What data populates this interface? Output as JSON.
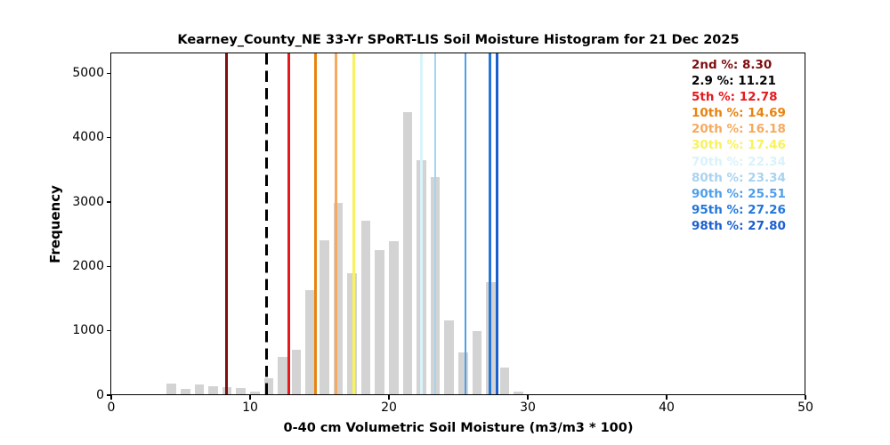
{
  "chart_data": {
    "type": "bar",
    "title": "Kearney_County_NE 33-Yr SPoRT-LIS Soil Moisture Histogram for 21 Dec 2025",
    "xlabel": "0-40 cm Volumetric Soil Moisture (m3/m3 * 100)",
    "ylabel": "Frequency",
    "xlim": [
      0,
      50
    ],
    "ylim": [
      0,
      5310
    ],
    "x_ticks": [
      0,
      10,
      20,
      30,
      40,
      50
    ],
    "y_ticks": [
      0,
      1000,
      2000,
      3000,
      4000,
      5000
    ],
    "grid": false,
    "bar_color": "#d3d3d3",
    "legend_position": "top-right-inside",
    "histogram": {
      "bin_left_edges": [
        4,
        5,
        6,
        7,
        8,
        9,
        10,
        11,
        12,
        13,
        14,
        15,
        16,
        17,
        18,
        19,
        20,
        21,
        22,
        23,
        24,
        25,
        26,
        27,
        28,
        29
      ],
      "bin_width": 1,
      "bar_rel_width": 0.68,
      "frequencies": [
        175,
        95,
        170,
        145,
        130,
        115,
        50,
        260,
        590,
        700,
        1630,
        2400,
        2990,
        1890,
        2710,
        2260,
        2390,
        4400,
        3655,
        3390,
        1160,
        670,
        1000,
        1760,
        430,
        60
      ]
    },
    "percentile_lines": [
      {
        "label": "2nd %",
        "value": 8.3,
        "value_display": "8.30",
        "color": "#7e0e10",
        "line_style": "solid"
      },
      {
        "label": "2.9 %",
        "value": 11.21,
        "value_display": "11.21",
        "color": "#000000",
        "line_style": "dashed"
      },
      {
        "label": "5th %",
        "value": 12.78,
        "value_display": "12.78",
        "color": "#e51a1c",
        "line_style": "solid"
      },
      {
        "label": "10th %",
        "value": 14.69,
        "value_display": "14.69",
        "color": "#e8830f",
        "line_style": "solid"
      },
      {
        "label": "20th %",
        "value": 16.18,
        "value_display": "16.18",
        "color": "#f6aa5f",
        "line_style": "solid"
      },
      {
        "label": "30th %",
        "value": 17.46,
        "value_display": "17.46",
        "color": "#f8f25c",
        "line_style": "solid"
      },
      {
        "label": "70th %",
        "value": 22.34,
        "value_display": "22.34",
        "color": "#d9f3fa",
        "line_style": "solid"
      },
      {
        "label": "80th %",
        "value": 23.34,
        "value_display": "23.34",
        "color": "#a8d3f0",
        "line_style": "solid"
      },
      {
        "label": "90th %",
        "value": 25.51,
        "value_display": "25.51",
        "color": "#4f9fe8",
        "line_style": "solid"
      },
      {
        "label": "95th %",
        "value": 27.26,
        "value_display": "27.26",
        "color": "#2376dc",
        "line_style": "solid"
      },
      {
        "label": "98th %",
        "value": 27.8,
        "value_display": "27.80",
        "color": "#1c5fce",
        "line_style": "solid"
      }
    ]
  }
}
